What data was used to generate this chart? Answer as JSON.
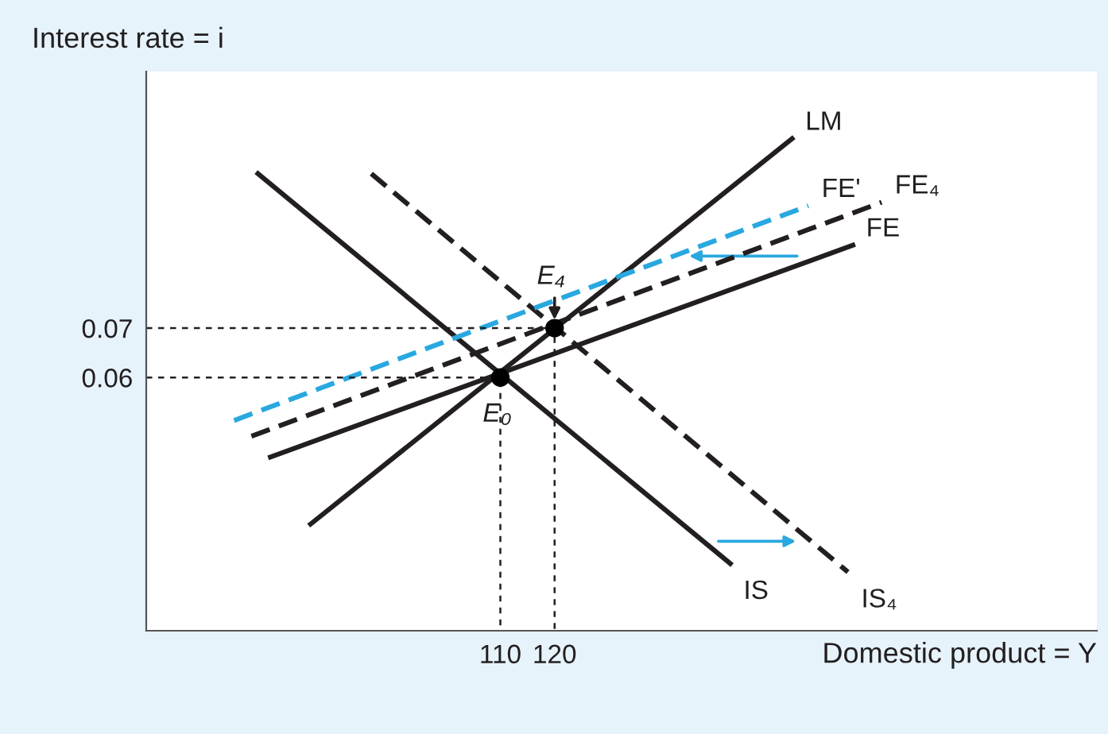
{
  "chart_data": {
    "type": "line",
    "xlabel": "Domestic product = Y",
    "ylabel": "Interest rate = i",
    "xlim": [
      44.7,
      220
    ],
    "ylim": [
      0.0087,
      0.122
    ],
    "xticks": [
      110,
      120
    ],
    "yticks": [
      0.06,
      0.07
    ],
    "grid": false,
    "legend": false,
    "series": [
      {
        "name": "IS",
        "color": "#231f20",
        "x": [
          65.3,
          152.4
        ],
        "values": [
          0.1013,
          0.0223
        ],
        "line_style": "solid"
      },
      {
        "name": "IS₄",
        "color": "#231f20",
        "x": [
          86.2,
          174.1
        ],
        "values": [
          0.1013,
          0.0206
        ],
        "line_style": "dashed"
      },
      {
        "name": "LM",
        "color": "#231f20",
        "x": [
          75.0,
          163.8
        ],
        "values": [
          0.0303,
          0.1084
        ],
        "line_style": "solid"
      },
      {
        "name": "FE",
        "color": "#231f20",
        "x": [
          67.6,
          175.0
        ],
        "values": [
          0.0439,
          0.0868
        ],
        "line_style": "solid"
      },
      {
        "name": "FE₄",
        "color": "#231f20",
        "x": [
          64.1,
          180.3
        ],
        "values": [
          0.0481,
          0.0955
        ],
        "line_style": "dashed"
      },
      {
        "name": "FE'",
        "color": "#29a8e0",
        "x": [
          60.9,
          166.8
        ],
        "values": [
          0.0513,
          0.0948
        ],
        "line_style": "dashed"
      },
      {
        "color": "#231f20",
        "x": [
          44.7,
          110,
          110
        ],
        "values": [
          0.06,
          0.06,
          0.0087
        ],
        "line_style": "dotted"
      },
      {
        "color": "#231f20",
        "x": [
          44.7,
          120,
          120
        ],
        "values": [
          0.07,
          0.07,
          0.0087
        ],
        "line_style": "dotted"
      },
      {
        "type": "scatter",
        "color": "#000000",
        "x": [
          110,
          120
        ],
        "values": [
          0.06,
          0.07
        ],
        "marker": "circle"
      }
    ],
    "annotations": [
      {
        "text": "E₀",
        "x": 110,
        "y": 0.06
      },
      {
        "text": "E₄",
        "x": 120,
        "y": 0.07
      }
    ]
  }
}
